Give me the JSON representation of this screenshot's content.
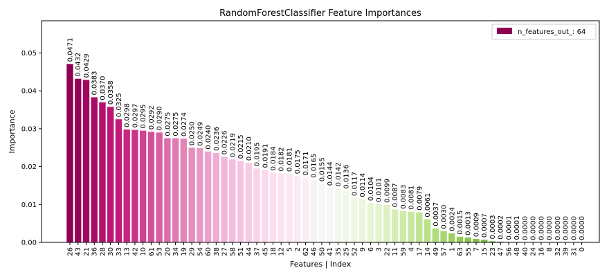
{
  "chart_data": {
    "type": "bar",
    "title": "RandomForestClassifier Feature Importances",
    "xlabel": "Features | Index",
    "ylabel": "Importance",
    "ylim": [
      0,
      0.0585
    ],
    "yticks": [
      "0.00",
      "0.01",
      "0.02",
      "0.03",
      "0.04",
      "0.05"
    ],
    "ytick_values": [
      0,
      0.01,
      0.02,
      0.03,
      0.04,
      0.05
    ],
    "grid": false,
    "legend": {
      "label": "n_features_out_: 64",
      "placement": "top-right",
      "color": "#8e0152"
    },
    "colormap": "PiYG",
    "categories": [
      "26",
      "43",
      "21",
      "36",
      "28",
      "30",
      "33",
      "13",
      "42",
      "10",
      "61",
      "53",
      "20",
      "34",
      "19",
      "29",
      "54",
      "60",
      "38",
      "27",
      "58",
      "51",
      "44",
      "37",
      "45",
      "18",
      "12",
      "5",
      "2",
      "62",
      "46",
      "50",
      "41",
      "35",
      "25",
      "52",
      "9",
      "6",
      "3",
      "22",
      "11",
      "59",
      "4",
      "17",
      "14",
      "49",
      "57",
      "1",
      "63",
      "55",
      "7",
      "15",
      "23",
      "47",
      "56",
      "48",
      "40",
      "24",
      "16",
      "8",
      "32",
      "39",
      "31",
      "0"
    ],
    "values": [
      0.0471,
      0.0432,
      0.0429,
      0.0383,
      0.037,
      0.0358,
      0.0325,
      0.0298,
      0.0297,
      0.0295,
      0.0292,
      0.029,
      0.0275,
      0.0275,
      0.0274,
      0.025,
      0.0249,
      0.024,
      0.0236,
      0.0226,
      0.0219,
      0.0215,
      0.021,
      0.0195,
      0.0191,
      0.0184,
      0.0182,
      0.0181,
      0.0175,
      0.0171,
      0.0165,
      0.0155,
      0.0144,
      0.0142,
      0.0136,
      0.0117,
      0.0114,
      0.0104,
      0.0101,
      0.0099,
      0.0087,
      0.0083,
      0.0081,
      0.0079,
      0.0061,
      0.0037,
      0.003,
      0.0024,
      0.0015,
      0.0013,
      0.0009,
      0.0007,
      0.0003,
      0.0002,
      0.0001,
      0.0001,
      0.0,
      0.0,
      0.0,
      0.0,
      0.0,
      0.0,
      0.0,
      0.0
    ],
    "data_labels": [
      "0.0471",
      "0.0432",
      "0.0429",
      "0.0383",
      "0.0370",
      "0.0358",
      "0.0325",
      "0.0298",
      "0.0297",
      "0.0295",
      "0.0292",
      "0.0290",
      "0.0275",
      "0.0275",
      "0.0274",
      "0.0250",
      "0.0249",
      "0.0240",
      "0.0236",
      "0.0226",
      "0.0219",
      "0.0215",
      "0.0210",
      "0.0195",
      "0.0191",
      "0.0184",
      "0.0182",
      "0.0181",
      "0.0175",
      "0.0171",
      "0.0165",
      "0.0155",
      "0.0144",
      "0.0142",
      "0.0136",
      "0.0117",
      "0.0114",
      "0.0104",
      "0.0101",
      "0.0099",
      "0.0087",
      "0.0083",
      "0.0081",
      "0.0079",
      "0.0061",
      "0.0037",
      "0.0030",
      "0.0024",
      "0.0015",
      "0.0013",
      "0.0009",
      "0.0007",
      "0.0003",
      "0.0002",
      "0.0001",
      "0.0001",
      "0.0000",
      "0.0000",
      "0.0000",
      "0.0000",
      "0.0000",
      "0.0000",
      "0.0000",
      "0.0000"
    ]
  }
}
